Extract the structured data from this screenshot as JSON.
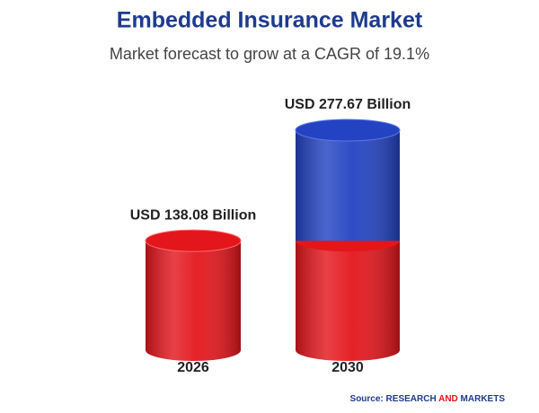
{
  "chart_data": {
    "type": "cylinder",
    "title": "Embedded Insurance Market",
    "subtitle": "Market forecast to grow at a CAGR of 19.1%",
    "categories": [
      "2026",
      "2030"
    ],
    "values": [
      138.08,
      277.67
    ],
    "value_labels": [
      "USD 138.08 Billion",
      "USD 277.67 Billion"
    ],
    "base_color": "#e3161c",
    "growth_color": "#2343c2",
    "source": {
      "label": "Source:",
      "part1": "RESEARCH",
      "part2": "AND",
      "part3": "MARKETS"
    }
  }
}
